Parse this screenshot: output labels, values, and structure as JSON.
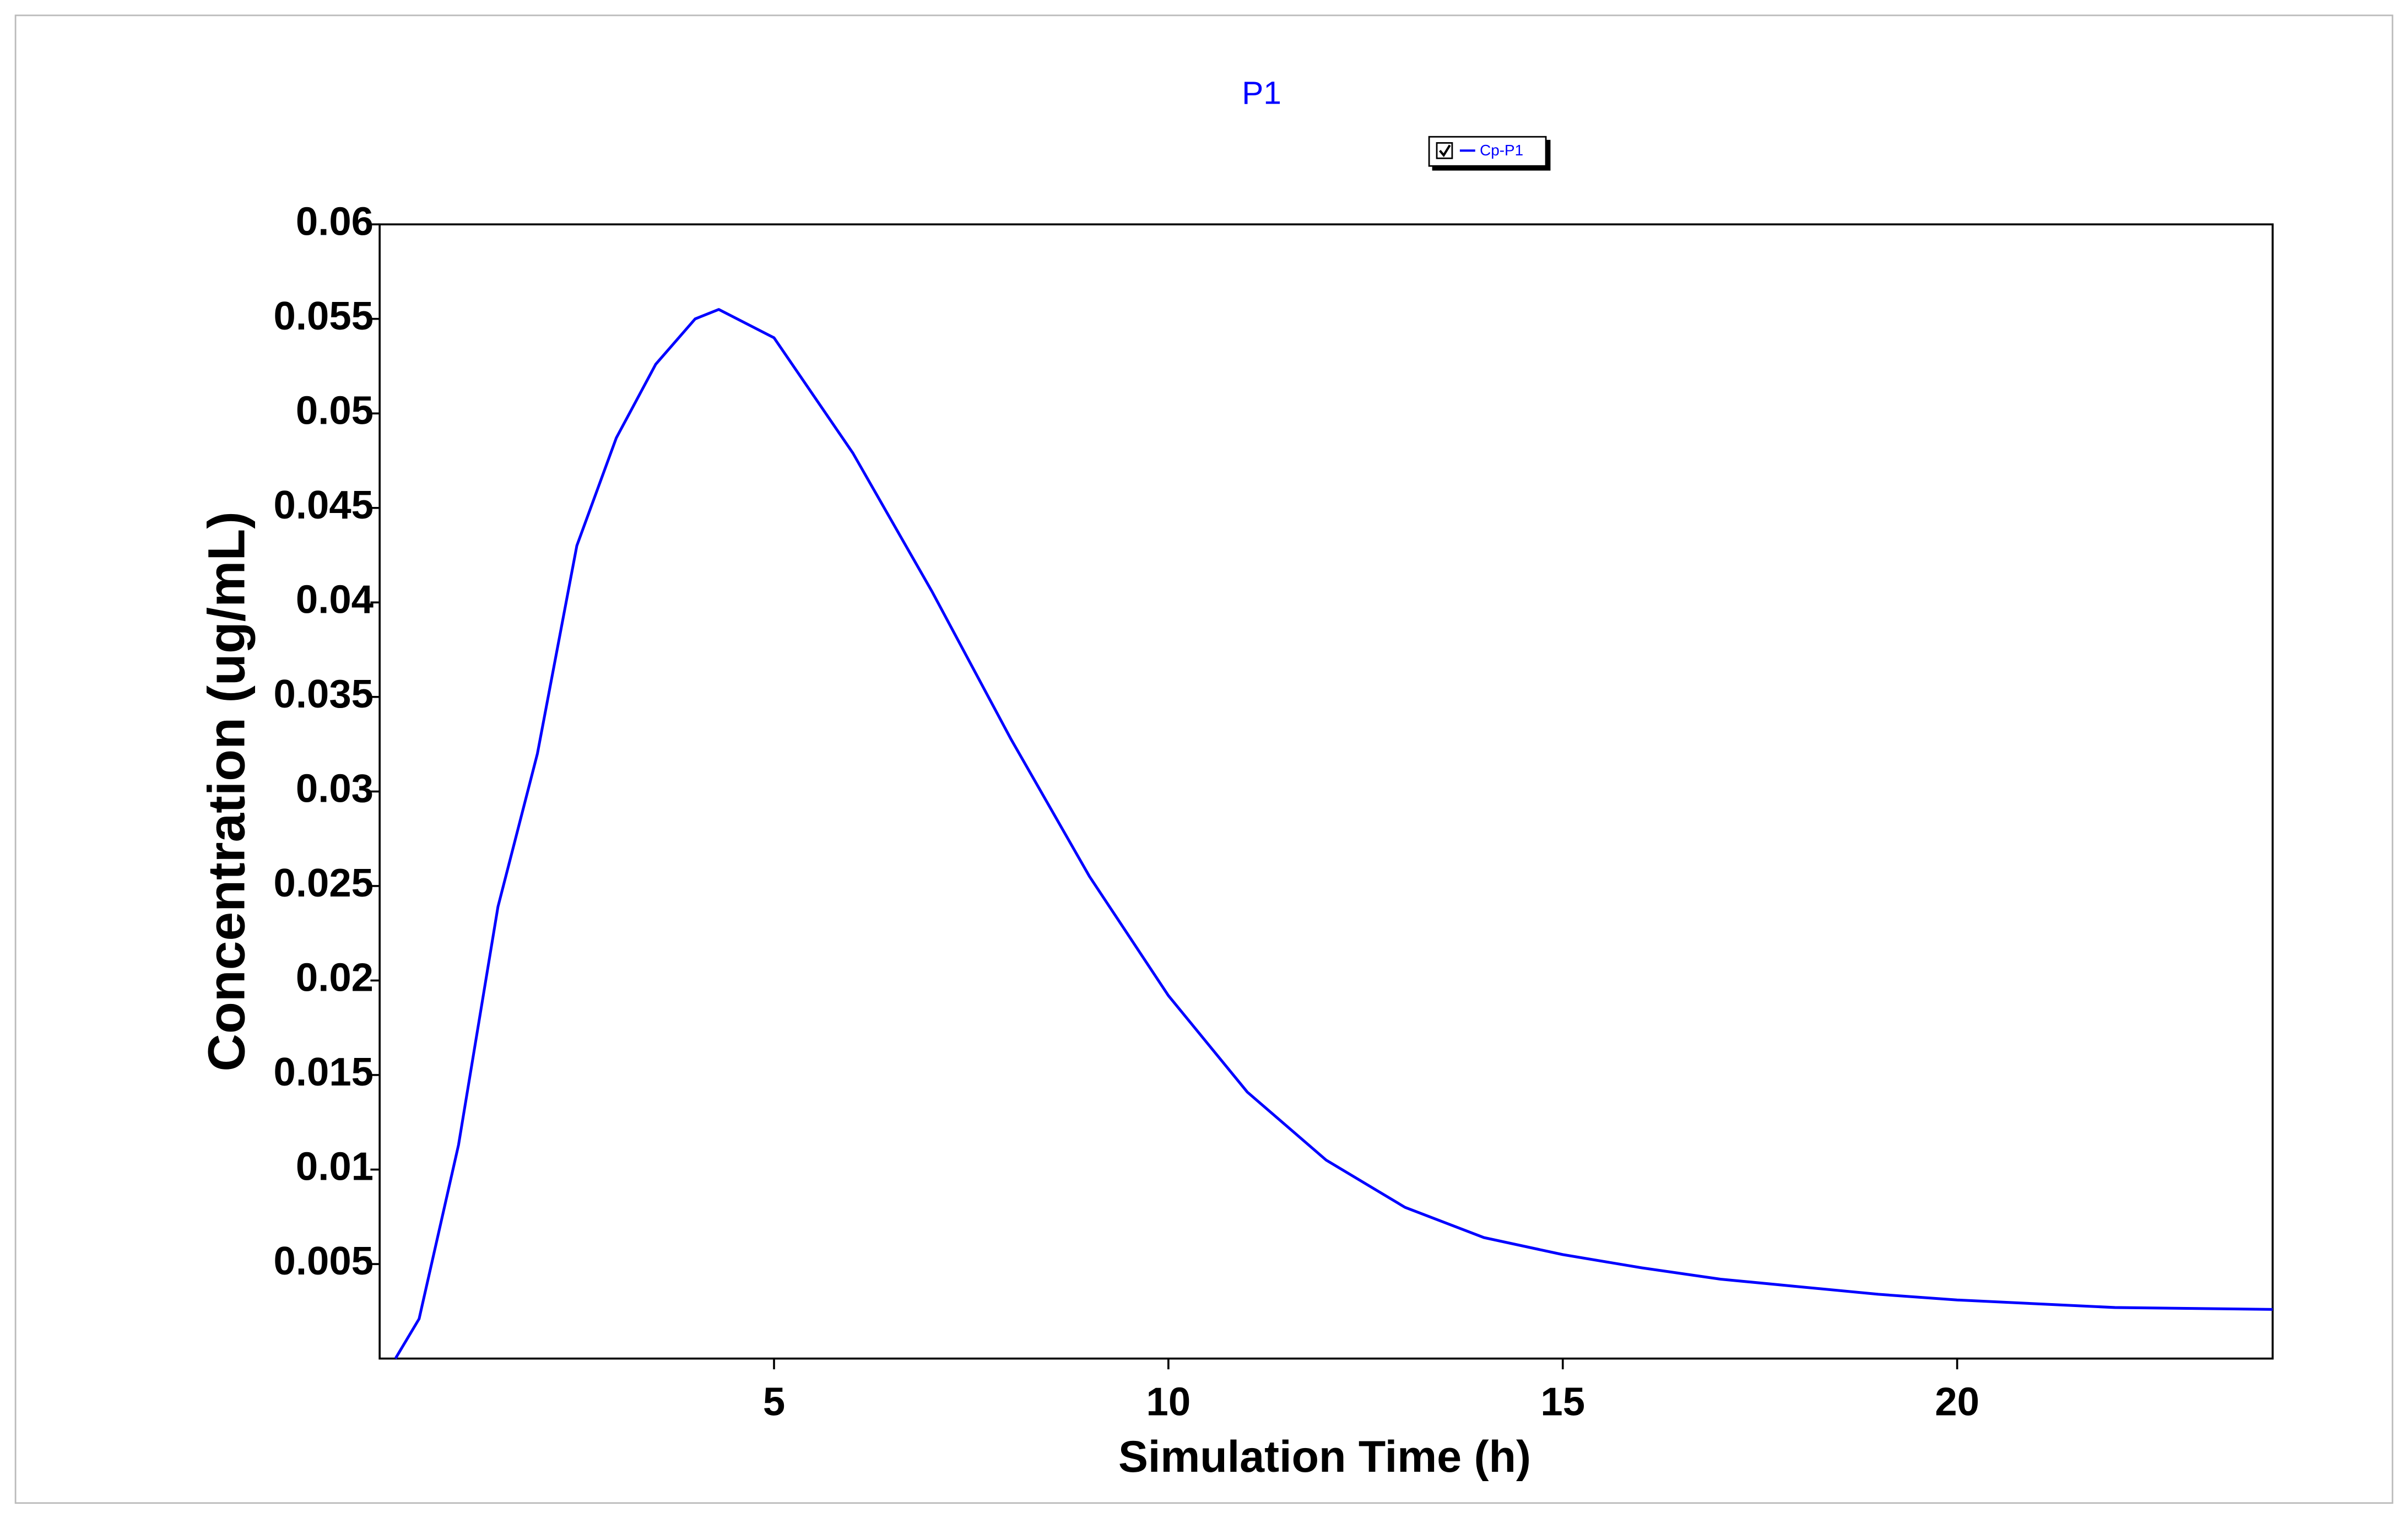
{
  "chart_data": {
    "type": "line",
    "title": "P1",
    "x_label": "Simulation Time (h)",
    "y_label": "Concentration (ug/mL)",
    "x": [
      0.2,
      0.5,
      1,
      1.5,
      2,
      2.5,
      3,
      3.5,
      4,
      4.3,
      5,
      6,
      7,
      8,
      9,
      10,
      11,
      12,
      13,
      14,
      15,
      16,
      17,
      18,
      19,
      20,
      22,
      24
    ],
    "series": [
      {
        "name": "Cp-P1",
        "color": "#0000ff",
        "values": [
          0,
          0.0021,
          0.0113,
          0.0239,
          0.032,
          0.043,
          0.0487,
          0.0526,
          0.055,
          0.0555,
          0.054,
          0.0479,
          0.0406,
          0.0328,
          0.0255,
          0.0192,
          0.0141,
          0.0105,
          0.008,
          0.0064,
          0.0055,
          0.0048,
          0.0042,
          0.0038,
          0.0034,
          0.0031,
          0.0027,
          0.0026
        ]
      }
    ],
    "xlim": [
      0,
      24
    ],
    "xticks": [
      5,
      10,
      15,
      20
    ],
    "ylim": [
      0,
      0.06
    ],
    "yticks": [
      0.005,
      0.01,
      0.015,
      0.02,
      0.025,
      0.03,
      0.035,
      0.04,
      0.045,
      0.05,
      0.055,
      0.06
    ],
    "grid": false
  }
}
